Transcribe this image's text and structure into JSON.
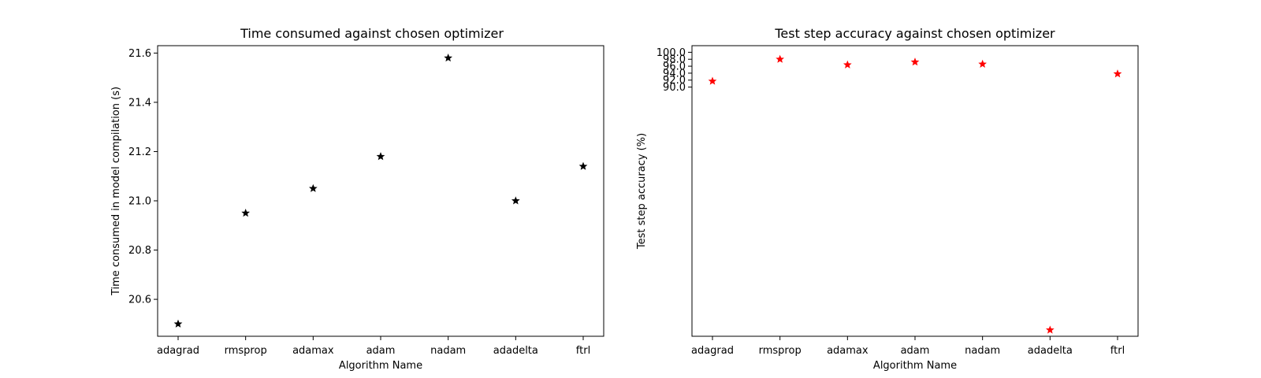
{
  "chart_data": [
    {
      "type": "scatter",
      "title": "Time consumed against chosen optimizer",
      "xlabel": "Algorithm Name",
      "ylabel": "Time consumed in model compilation (s)",
      "categories": [
        "adagrad",
        "rmsprop",
        "adamax",
        "adam",
        "nadam",
        "adadelta",
        "ftrl"
      ],
      "values": [
        20.5,
        20.95,
        21.05,
        21.18,
        21.58,
        21.0,
        21.14
      ],
      "ylim": [
        20.45,
        21.63
      ],
      "yticks": [
        20.6,
        20.8,
        21.0,
        21.2,
        21.4,
        21.6
      ],
      "ytick_labels": [
        "20.6",
        "20.8",
        "21.0",
        "21.2",
        "21.4",
        "21.6"
      ],
      "marker": "star",
      "color": "#000000",
      "grid": false
    },
    {
      "type": "scatter",
      "title": "Test step accuracy against chosen optimizer",
      "xlabel": "Algorithm Name",
      "ylabel": "Test step accuracy (%)",
      "categories": [
        "adagrad",
        "rmsprop",
        "adamax",
        "adam",
        "nadam",
        "adadelta",
        "ftrl"
      ],
      "values": [
        91.7,
        98.0,
        96.4,
        97.2,
        96.6,
        20.2,
        93.8
      ],
      "ylim": [
        18.4,
        101.9
      ],
      "yticks": [
        90,
        92,
        94,
        96,
        98,
        100
      ],
      "ytick_labels": [
        "90.0",
        "92.0",
        "94.0",
        "96.0",
        "98.0",
        "100.0"
      ],
      "marker": "star",
      "color": "#ff0000",
      "grid": false
    }
  ]
}
